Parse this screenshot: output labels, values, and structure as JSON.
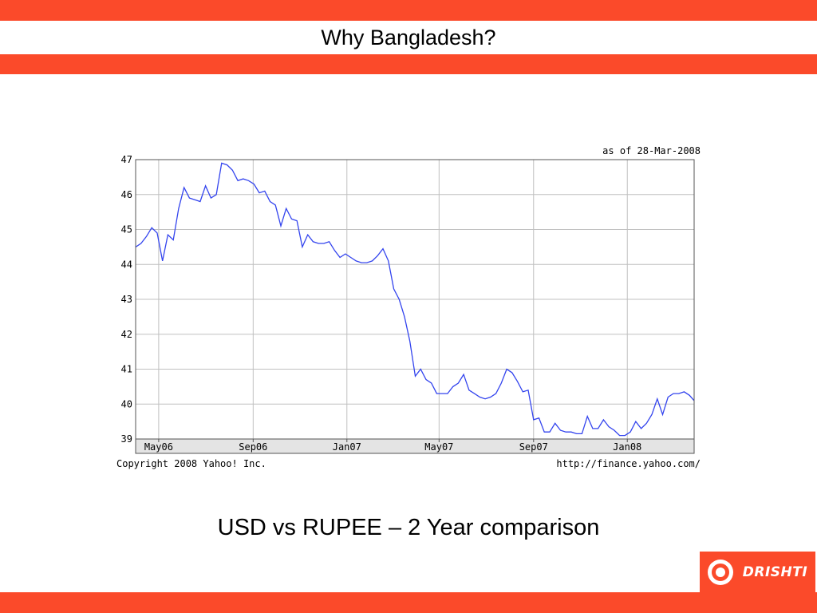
{
  "slide": {
    "title": "Why Bangladesh?",
    "subtitle": "USD vs RUPEE – 2 Year comparison",
    "logo_text": "DRISHTI",
    "logo_icon": "drishti-eye-icon"
  },
  "colors": {
    "band": "#fb4a2a",
    "line": "#3344ee",
    "grid": "#c0c0c0",
    "axis_band": "#e4e4e4"
  },
  "chart_data": {
    "type": "line",
    "title": "",
    "date_note": "as of 28-Mar-2008",
    "copyright": "Copyright 2008 Yahoo! Inc.",
    "source_url": "http://finance.yahoo.com/",
    "xlabel": "",
    "ylabel": "",
    "ylim": [
      39,
      47
    ],
    "yticks": [
      39,
      40,
      41,
      42,
      43,
      44,
      45,
      46,
      47
    ],
    "xticks": [
      "May06",
      "Sep06",
      "Jan07",
      "May07",
      "Sep07",
      "Jan08"
    ],
    "xlim": [
      "2006-04-01",
      "2008-03-28"
    ],
    "grid": true,
    "series": [
      {
        "x": [
          "2006-04-01",
          "2006-04-08",
          "2006-04-15",
          "2006-04-22",
          "2006-04-29",
          "2006-05-06",
          "2006-05-13",
          "2006-05-20",
          "2006-05-27",
          "2006-06-03",
          "2006-06-10",
          "2006-06-17",
          "2006-06-24",
          "2006-07-01",
          "2006-07-08",
          "2006-07-15",
          "2006-07-22",
          "2006-07-29",
          "2006-08-05",
          "2006-08-12",
          "2006-08-19",
          "2006-08-26",
          "2006-09-02",
          "2006-09-09",
          "2006-09-16",
          "2006-09-23",
          "2006-09-30",
          "2006-10-07",
          "2006-10-14",
          "2006-10-21",
          "2006-10-28",
          "2006-11-04",
          "2006-11-11",
          "2006-11-18",
          "2006-11-25",
          "2006-12-02",
          "2006-12-09",
          "2006-12-16",
          "2006-12-23",
          "2006-12-30",
          "2007-01-06",
          "2007-01-13",
          "2007-01-20",
          "2007-01-27",
          "2007-02-03",
          "2007-02-10",
          "2007-02-17",
          "2007-02-24",
          "2007-03-03",
          "2007-03-10",
          "2007-03-17",
          "2007-03-24",
          "2007-03-31",
          "2007-04-07",
          "2007-04-14",
          "2007-04-21",
          "2007-04-28",
          "2007-05-05",
          "2007-05-12",
          "2007-05-19",
          "2007-05-26",
          "2007-06-02",
          "2007-06-09",
          "2007-06-16",
          "2007-06-23",
          "2007-06-30",
          "2007-07-07",
          "2007-07-14",
          "2007-07-21",
          "2007-07-28",
          "2007-08-04",
          "2007-08-11",
          "2007-08-18",
          "2007-08-25",
          "2007-09-01",
          "2007-09-08",
          "2007-09-15",
          "2007-09-22",
          "2007-09-29",
          "2007-10-06",
          "2007-10-13",
          "2007-10-20",
          "2007-10-27",
          "2007-11-03",
          "2007-11-10",
          "2007-11-17",
          "2007-11-24",
          "2007-12-01",
          "2007-12-08",
          "2007-12-15",
          "2007-12-22",
          "2007-12-29",
          "2008-01-05",
          "2008-01-12",
          "2008-01-19",
          "2008-01-26",
          "2008-02-02",
          "2008-02-09",
          "2008-02-16",
          "2008-02-23",
          "2008-03-01",
          "2008-03-08",
          "2008-03-15",
          "2008-03-22",
          "2008-03-28"
        ],
        "values": [
          44.5,
          44.6,
          44.8,
          45.05,
          44.9,
          44.1,
          44.85,
          44.7,
          45.6,
          46.2,
          45.9,
          45.85,
          45.8,
          46.25,
          45.9,
          46.0,
          46.9,
          46.85,
          46.7,
          46.4,
          46.45,
          46.4,
          46.3,
          46.05,
          46.1,
          45.8,
          45.7,
          45.1,
          45.6,
          45.3,
          45.25,
          44.5,
          44.85,
          44.65,
          44.6,
          44.6,
          44.65,
          44.4,
          44.2,
          44.3,
          44.2,
          44.1,
          44.05,
          44.05,
          44.1,
          44.25,
          44.45,
          44.1,
          43.3,
          43.0,
          42.5,
          41.8,
          40.8,
          41.0,
          40.7,
          40.6,
          40.3,
          40.3,
          40.3,
          40.5,
          40.6,
          40.85,
          40.4,
          40.3,
          40.2,
          40.15,
          40.2,
          40.3,
          40.6,
          41.0,
          40.9,
          40.65,
          40.35,
          40.4,
          39.55,
          39.6,
          39.2,
          39.2,
          39.45,
          39.25,
          39.2,
          39.2,
          39.15,
          39.15,
          39.65,
          39.3,
          39.3,
          39.55,
          39.35,
          39.25,
          39.1,
          39.1,
          39.2,
          39.5,
          39.3,
          39.45,
          39.7,
          40.15,
          39.7,
          40.2,
          40.3,
          40.3,
          40.35,
          40.25,
          40.1
        ]
      }
    ]
  }
}
